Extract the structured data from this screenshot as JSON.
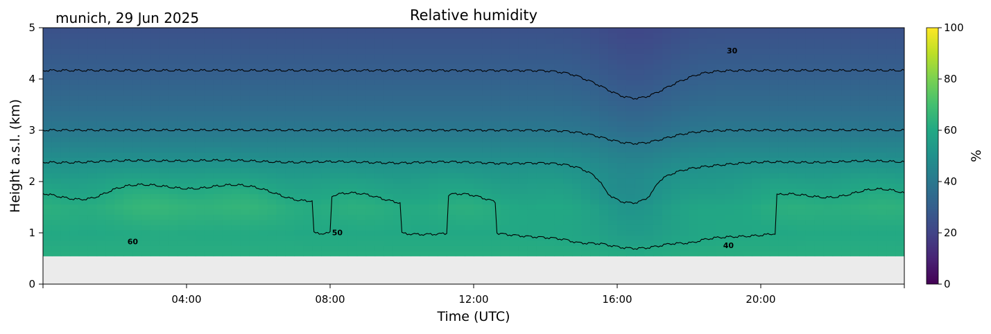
{
  "header": {
    "location_date": "munich, 29 Jun 2025",
    "title": "Relative humidity"
  },
  "chart_data": {
    "type": "heatmap",
    "title": "Relative humidity",
    "xlabel": "Time (UTC)",
    "ylabel": "Height a.s.l. (km)",
    "x_ticks": [
      "04:00",
      "08:00",
      "12:00",
      "16:00",
      "20:00"
    ],
    "x_tick_hours": [
      4,
      8,
      12,
      16,
      20
    ],
    "xlim_hours": [
      0,
      24
    ],
    "y_ticks": [
      "0",
      "1",
      "2",
      "3",
      "4",
      "5"
    ],
    "ylim_km": [
      0,
      5
    ],
    "data_bottom_km": 0.55,
    "colorbar": {
      "label": "%",
      "ticks": [
        "0",
        "20",
        "40",
        "60",
        "80",
        "100"
      ],
      "range": [
        0,
        100
      ],
      "colormap": "viridis"
    },
    "contour_levels": [
      30,
      40,
      50,
      60
    ],
    "contour_labels": [
      {
        "text": "30",
        "hour": 19.2,
        "km": 4.5
      },
      {
        "text": "40",
        "hour": 19.1,
        "km": 0.7
      },
      {
        "text": "50",
        "hour": 8.2,
        "km": 0.95
      },
      {
        "text": "60",
        "hour": 2.5,
        "km": 0.78
      }
    ],
    "humidity_profile": {
      "heights_km": [
        0.6,
        1.0,
        1.5,
        2.0,
        2.5,
        3.0,
        3.5,
        4.0,
        4.5,
        5.0
      ],
      "rh_percent": [
        62,
        60,
        62,
        56,
        48,
        40,
        35,
        31,
        28,
        25
      ]
    },
    "missing_data_color": "#ebebeb"
  }
}
